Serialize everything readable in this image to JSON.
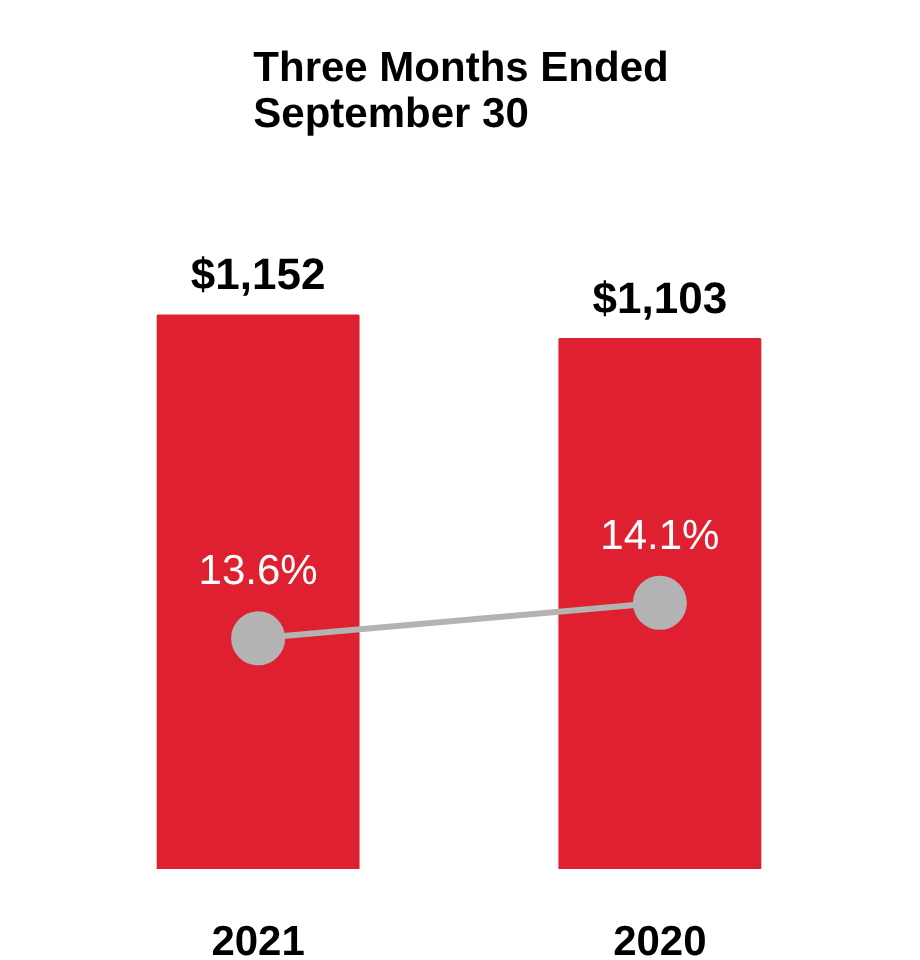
{
  "chart_data": {
    "type": "bar",
    "title": "Three Months Ended\nSeptember 30",
    "categories": [
      "2021",
      "2020"
    ],
    "tick_labels": "x",
    "grid": false,
    "series": [
      {
        "color": "#df2030",
        "values": [
          1152,
          1103
        ],
        "value_labels": [
          "$1,152",
          "$1,103"
        ]
      },
      {
        "type": "line",
        "axis": "y2",
        "color": "#b3b3b3",
        "marker": "circle",
        "line_style": "solid",
        "values": [
          13.6,
          14.1
        ],
        "value_labels": [
          "13.6%",
          "14.1%"
        ]
      }
    ]
  }
}
